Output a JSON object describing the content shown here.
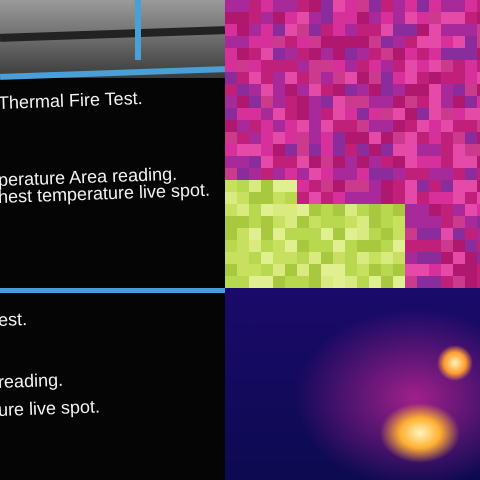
{
  "panels": [
    {
      "lines": [
        "Thermal Fire Test.",
        "perature Area reading.",
        "hest temperature live spot."
      ]
    },
    {
      "lines": [
        "est.",
        "reading.",
        "ure live spot."
      ]
    }
  ]
}
